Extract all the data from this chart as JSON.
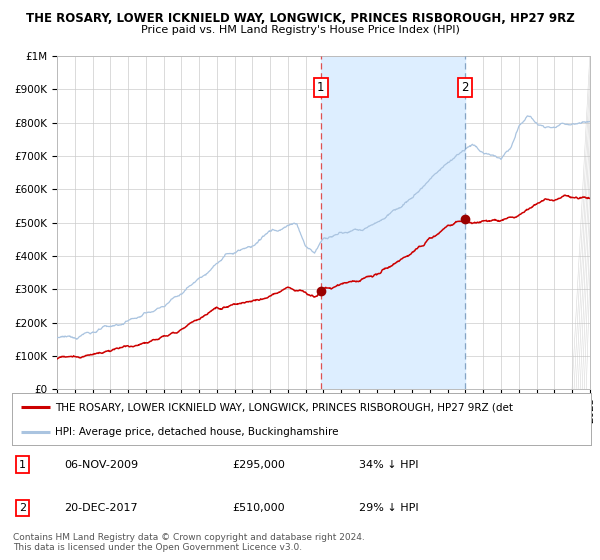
{
  "title": "THE ROSARY, LOWER ICKNIELD WAY, LONGWICK, PRINCES RISBOROUGH, HP27 9RZ",
  "subtitle": "Price paid vs. HM Land Registry's House Price Index (HPI)",
  "ylim": [
    0,
    1000000
  ],
  "yticks": [
    0,
    100000,
    200000,
    300000,
    400000,
    500000,
    600000,
    700000,
    800000,
    900000,
    1000000
  ],
  "ytick_labels": [
    "£0",
    "£100K",
    "£200K",
    "£300K",
    "£400K",
    "£500K",
    "£600K",
    "£700K",
    "£800K",
    "£900K",
    "£1M"
  ],
  "hpi_color": "#aac4e0",
  "price_color": "#cc0000",
  "marker_color": "#990000",
  "vline1_color": "#dd3333",
  "vline2_color": "#7799bb",
  "shade_color": "#ddeeff",
  "grid_color": "#cccccc",
  "bg_color": "#ffffff",
  "point1_year": 2009.85,
  "point1_value": 295000,
  "point1_label": "06-NOV-2009",
  "point1_price": "£295,000",
  "point1_hpi": "34% ↓ HPI",
  "point2_year": 2017.96,
  "point2_value": 510000,
  "point2_label": "20-DEC-2017",
  "point2_price": "£510,000",
  "point2_hpi": "29% ↓ HPI",
  "legend_red": "THE ROSARY, LOWER ICKNIELD WAY, LONGWICK, PRINCES RISBOROUGH, HP27 9RZ (det",
  "legend_blue": "HPI: Average price, detached house, Buckinghamshire",
  "footer1": "Contains HM Land Registry data © Crown copyright and database right 2024.",
  "footer2": "This data is licensed under the Open Government Licence v3.0.",
  "xstart": 1995,
  "xend": 2025,
  "title_fontsize": 8.5,
  "subtitle_fontsize": 8.0,
  "tick_fontsize": 7.5,
  "legend_fontsize": 7.5,
  "table_fontsize": 8.0,
  "footer_fontsize": 6.5
}
